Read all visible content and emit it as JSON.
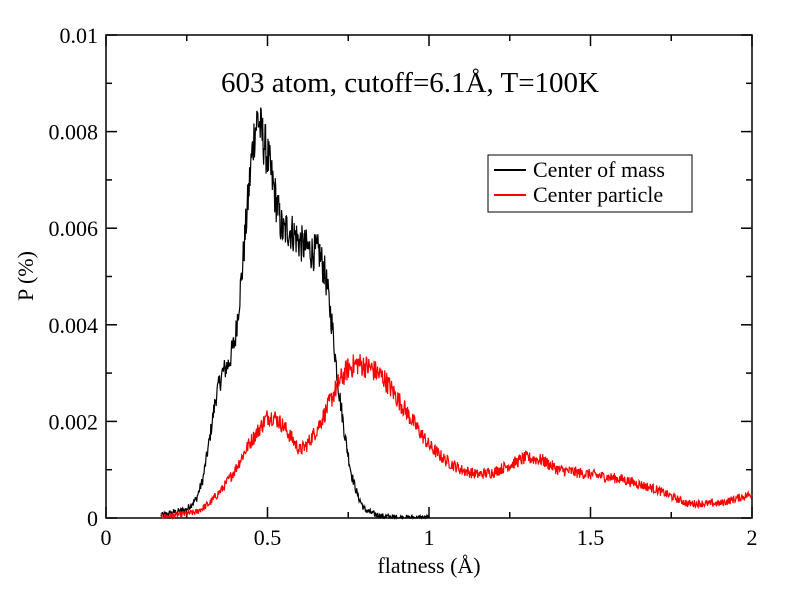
{
  "chart_data": {
    "type": "line",
    "title": "603 atom, cutoff=6.1Å, T=100K",
    "xlabel": "flatness (Å)",
    "ylabel": "P (%)",
    "xlim": [
      0,
      2
    ],
    "ylim": [
      0,
      0.01
    ],
    "x_ticks": [
      0,
      0.5,
      1,
      1.5,
      2
    ],
    "x_tick_labels": [
      "0",
      "0.5",
      "1",
      "1.5",
      "2"
    ],
    "y_ticks": [
      0,
      0.002,
      0.004,
      0.006,
      0.008,
      0.01
    ],
    "y_tick_labels": [
      "0",
      "0.002",
      "0.004",
      "0.006",
      "0.008",
      "0.01"
    ],
    "grid": false,
    "legend_position": "upper-right",
    "series": [
      {
        "name": "Center of mass",
        "color": "#000000",
        "x": [
          0.17,
          0.2,
          0.25,
          0.28,
          0.3,
          0.32,
          0.34,
          0.36,
          0.38,
          0.4,
          0.42,
          0.44,
          0.45,
          0.46,
          0.47,
          0.48,
          0.5,
          0.52,
          0.54,
          0.55,
          0.56,
          0.58,
          0.6,
          0.62,
          0.64,
          0.66,
          0.68,
          0.7,
          0.72,
          0.74,
          0.76,
          0.78,
          0.8,
          0.83,
          0.86,
          0.9,
          1.0
        ],
        "y": [
          5e-05,
          0.0001,
          0.00018,
          0.0004,
          0.0008,
          0.0016,
          0.0025,
          0.003,
          0.0032,
          0.0037,
          0.005,
          0.0066,
          0.0074,
          0.008,
          0.0083,
          0.008,
          0.0075,
          0.0068,
          0.0061,
          0.0059,
          0.006,
          0.0059,
          0.0057,
          0.0056,
          0.0055,
          0.0055,
          0.005,
          0.004,
          0.0027,
          0.0017,
          0.0009,
          0.00045,
          0.00018,
          8e-05,
          3e-05,
          1e-05,
          0.0
        ]
      },
      {
        "name": "Center particle",
        "color": "#ff0000",
        "x": [
          0.17,
          0.22,
          0.28,
          0.32,
          0.36,
          0.4,
          0.44,
          0.48,
          0.5,
          0.52,
          0.55,
          0.58,
          0.6,
          0.62,
          0.65,
          0.68,
          0.72,
          0.75,
          0.78,
          0.82,
          0.86,
          0.9,
          0.95,
          1.0,
          1.05,
          1.1,
          1.15,
          1.2,
          1.25,
          1.3,
          1.35,
          1.4,
          1.5,
          1.6,
          1.7,
          1.8,
          1.9,
          2.0
        ],
        "y": [
          3e-05,
          6e-05,
          0.00012,
          0.0003,
          0.0006,
          0.001,
          0.0015,
          0.0019,
          0.0021,
          0.0021,
          0.0019,
          0.0016,
          0.0014,
          0.0015,
          0.0018,
          0.0022,
          0.0028,
          0.0031,
          0.0032,
          0.0031,
          0.0029,
          0.0025,
          0.002,
          0.0015,
          0.0012,
          0.001,
          0.0009,
          0.00095,
          0.0011,
          0.00125,
          0.0012,
          0.001,
          0.0009,
          0.0008,
          0.0006,
          0.0003,
          0.0003,
          0.0005
        ]
      }
    ]
  }
}
